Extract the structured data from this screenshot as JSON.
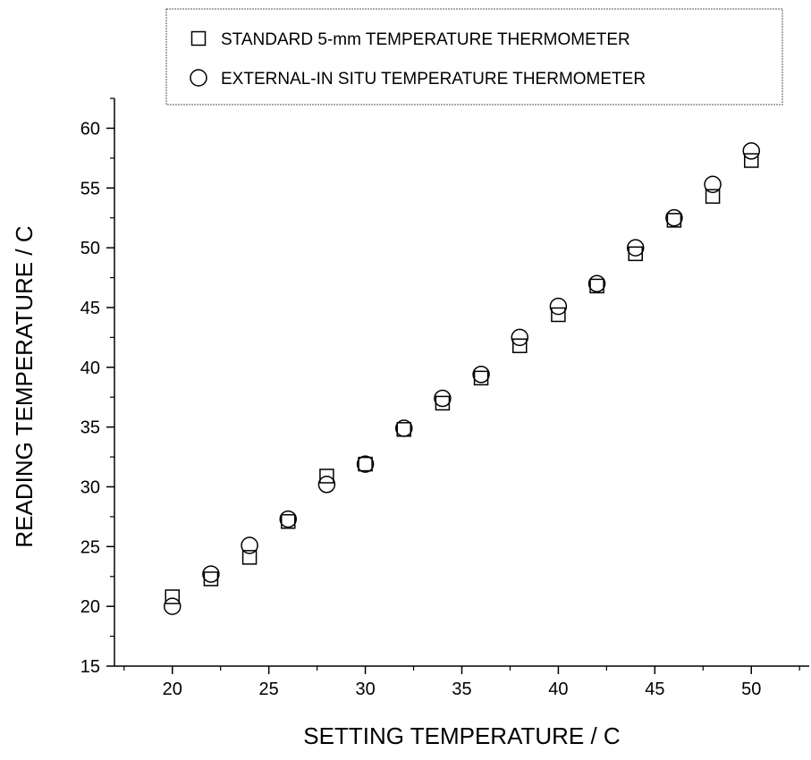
{
  "chart_data": {
    "type": "scatter",
    "title": "",
    "xlabel": "SETTING TEMPERATURE / C",
    "ylabel": "READING TEMPERATURE / C",
    "xlim": [
      17,
      53
    ],
    "ylim": [
      15,
      62.5
    ],
    "xticks": [
      20,
      25,
      30,
      35,
      40,
      45,
      50
    ],
    "yticks": [
      15,
      20,
      25,
      30,
      35,
      40,
      45,
      50,
      55,
      60
    ],
    "grid": false,
    "legend_position": "top",
    "series": [
      {
        "name": "STANDARD 5-mm TEMPERATURE THERMOMETER",
        "marker": "square",
        "x": [
          20,
          22,
          24,
          26,
          28,
          30,
          32,
          34,
          36,
          38,
          40,
          42,
          44,
          46,
          48,
          50
        ],
        "y": [
          20.8,
          22.3,
          24.1,
          27.1,
          30.9,
          31.9,
          34.8,
          37.0,
          39.1,
          41.8,
          44.4,
          46.8,
          49.5,
          52.3,
          54.3,
          57.3
        ]
      },
      {
        "name": "EXTERNAL-IN SITU TEMPERATURE THERMOMETER",
        "marker": "circle",
        "x": [
          20,
          22,
          24,
          26,
          28,
          30,
          32,
          34,
          36,
          38,
          40,
          42,
          44,
          46,
          48,
          50
        ],
        "y": [
          20.0,
          22.7,
          25.1,
          27.3,
          30.2,
          31.9,
          34.9,
          37.4,
          39.4,
          42.5,
          45.1,
          47.0,
          50.0,
          52.5,
          55.3,
          58.1
        ]
      }
    ]
  }
}
